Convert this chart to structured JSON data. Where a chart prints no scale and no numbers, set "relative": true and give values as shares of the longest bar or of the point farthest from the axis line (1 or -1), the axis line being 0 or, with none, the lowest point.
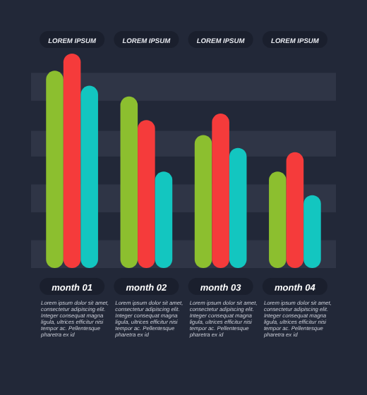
{
  "chart_data": {
    "type": "bar",
    "relative": true,
    "categories": [
      "month 01",
      "month 02",
      "month 03",
      "month 04"
    ],
    "series": [
      {
        "color": "#8cbf2f",
        "values": [
          0.92,
          0.8,
          0.62,
          0.45
        ]
      },
      {
        "color": "#f53b3b",
        "values": [
          1,
          0.69,
          0.72,
          0.54
        ]
      },
      {
        "color": "#13c6c0",
        "values": [
          0.85,
          0.45,
          0.56,
          0.34
        ]
      }
    ],
    "bands": [
      {
        "axis": "y",
        "from": 0.78,
        "to": 0.91,
        "color": "#2f3546"
      },
      {
        "axis": "y",
        "from": 0.52,
        "to": 0.64,
        "color": "#2f3546"
      },
      {
        "axis": "y",
        "from": 0.26,
        "to": 0.39,
        "color": "#2f3546"
      },
      {
        "axis": "y",
        "from": 0,
        "to": 0.13,
        "color": "#2f3546"
      }
    ],
    "annotations": [
      "LOREM IPSUM",
      "LOREM IPSUM",
      "LOREM IPSUM",
      "LOREM IPSUM",
      "Lorem ipsum dolor sit amet,\nconsectetur adipiscing elit.\nInteger consequat magna\nligula, ultrices efficitur nisi\ntempor ac. Pellentesque\npharetra ex id",
      "Lorem ipsum dolor sit amet,\nconsectetur adipiscing elit.\nInteger consequat magna\nligula, ultrices efficitur nisi\ntempor ac. Pellentesque\npharetra ex id",
      "Lorem ipsum dolor sit amet,\nconsectetur adipiscing elit.\nInteger consequat magna\nligula, ultrices efficitur nisi\ntempor ac. Pellentesque\npharetra ex id",
      "Lorem ipsum dolor sit amet,\nconsectetur adipiscing elit.\nInteger consequat magna\nligula, ultrices efficitur nisi\ntempor ac. Pellentesque\npharetra ex id"
    ]
  }
}
